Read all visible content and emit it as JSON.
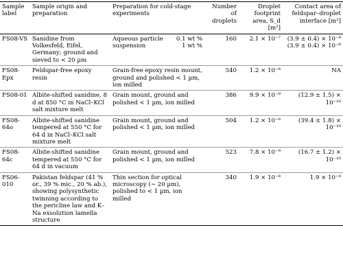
{
  "headers": {
    "label": "Sample label",
    "origin": "Sample origin and preparation",
    "prep": "Preparation for cold-stage experiments",
    "droplets": "Number of droplets",
    "footprint": "Droplet footprint area, S_d [m²]",
    "contact": "Contact area of feldspar–droplet interface [m²]"
  },
  "rows": [
    {
      "label": "FS08-VS",
      "origin": "Sanidine from Volkesfeld, Eifel, Germany; ground and sieved to < 20 µm",
      "prep": "Aqueous particle suspension",
      "prep_conc": [
        "0.1 wt %",
        "1 wt %"
      ],
      "droplets": "160",
      "footprint": "2.1 × 10⁻⁷",
      "contact": [
        "(3.9 ± 0.4) × 10⁻⁹",
        "(3.9 ± 0.4) × 10⁻⁸"
      ]
    },
    {
      "label": "FS08-Epx",
      "origin": "Feldspar-free epoxy resin",
      "prep": "Grain-free epoxy resin mount, ground and polished < 1 µm, ion milled",
      "droplets": "540",
      "footprint": "1.2 × 10⁻⁸",
      "contact": [
        "NA"
      ]
    },
    {
      "label": "FS08-01",
      "origin": "Albite-shifted sanidine, 8 d at 850 °C in NaCl–KCl salt mixture melt",
      "prep": "Grain mount, ground and polished < 1 µm, ion milled",
      "droplets": "386",
      "footprint": "9.9 × 10⁻⁹",
      "contact": [
        "(12.9 ± 1.5) × 10⁻¹⁰"
      ]
    },
    {
      "label": "FS08-64o",
      "origin": "Albite-shifted sanidine tempered at 550 °C for 64 d in NaCl–KCl salt mixture melt",
      "prep": "Grain mount, ground and polished < 1 µm, ion milled",
      "droplets": "504",
      "footprint": "1.2 × 10⁻⁸",
      "contact": [
        "(39.4 ± 1.8) × 10⁻¹⁰"
      ]
    },
    {
      "label": "FS08-64c",
      "origin": "Albite-shifted sanidine tempered at 550 °C for 64 d in vacuum",
      "prep": "Grain mount, ground and polished < 1 µm, ion milled",
      "droplets": "523",
      "footprint": "7.8 × 10⁻⁹",
      "contact": [
        "(16.7 ± 1.2) × 10⁻¹⁰"
      ]
    },
    {
      "label": "FS06-010",
      "origin": "Pakistan feldspar (41 % or., 39 % mic., 20 % ab.), showing polysynthetic twinning according to the pericline law and K–Na exsolution lamella structure",
      "prep": "Thin section for optical microscopy (∼ 20 µm), polished to < 1 µm, ion milled",
      "droplets": "340",
      "footprint": "1.9 × 10⁻⁸",
      "contact": [
        "1.9 × 10⁻⁸"
      ]
    }
  ]
}
